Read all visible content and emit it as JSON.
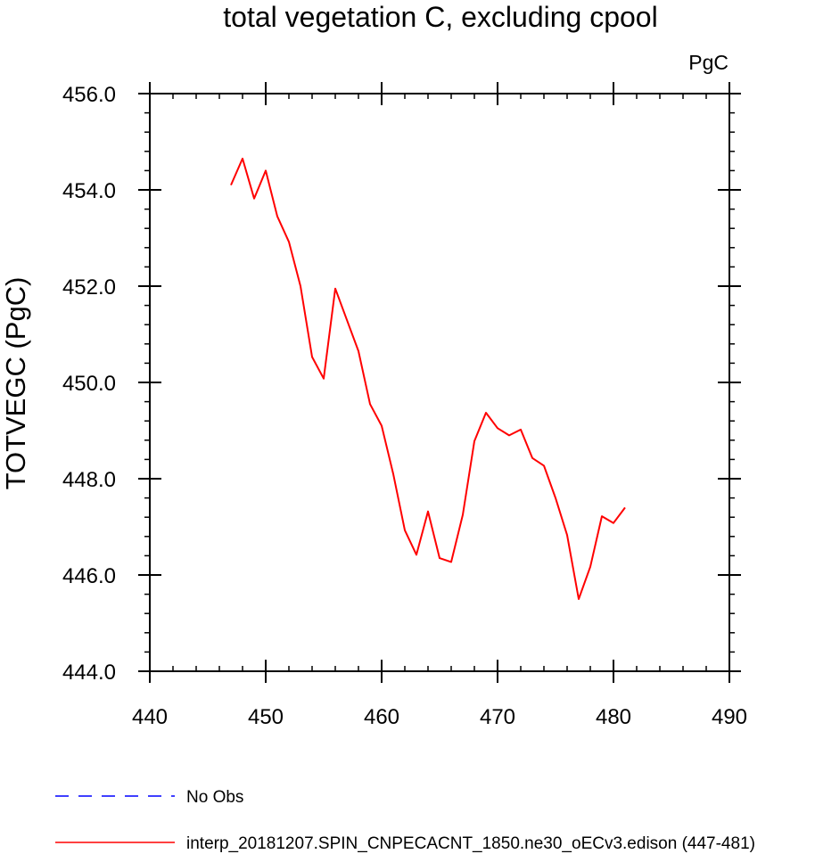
{
  "chart_data": {
    "type": "line",
    "title": "total vegetation C, excluding cpool",
    "units": "PgC",
    "xlabel": "",
    "ylabel": "TOTVEGC  (PgC)",
    "xlim": [
      440,
      490
    ],
    "ylim": [
      444,
      456
    ],
    "x_ticks": [
      440,
      450,
      460,
      470,
      480,
      490
    ],
    "x_tick_labels": [
      "440",
      "450",
      "460",
      "470",
      "480",
      "490"
    ],
    "y_ticks": [
      444,
      446,
      448,
      450,
      452,
      454,
      456
    ],
    "y_tick_labels": [
      "444.0",
      "446.0",
      "448.0",
      "450.0",
      "452.0",
      "454.0",
      "456.0"
    ],
    "grid": false,
    "legend_position": "bottom",
    "series": [
      {
        "name": "No Obs",
        "color": "#0000ff",
        "line_style": "dashed",
        "x": [],
        "y": []
      },
      {
        "name": "interp_20181207.SPIN_CNPECACNT_1850.ne30_oECv3.edison (447-481)",
        "color": "#ff0000",
        "line_style": "solid",
        "x": [
          447,
          448,
          449,
          450,
          451,
          452,
          453,
          454,
          455,
          456,
          457,
          458,
          459,
          460,
          461,
          462,
          463,
          464,
          465,
          466,
          467,
          468,
          469,
          470,
          471,
          472,
          473,
          474,
          475,
          476,
          477,
          478,
          479,
          480,
          481
        ],
        "y": [
          454.1,
          454.65,
          453.82,
          454.4,
          453.45,
          452.92,
          452.0,
          450.53,
          450.08,
          451.95,
          451.3,
          450.65,
          449.55,
          449.1,
          448.1,
          446.93,
          446.42,
          447.32,
          446.35,
          446.27,
          447.25,
          448.78,
          449.37,
          449.05,
          448.9,
          449.02,
          448.43,
          448.27,
          447.6,
          446.83,
          445.5,
          446.17,
          447.22,
          447.08,
          447.4
        ]
      }
    ]
  }
}
